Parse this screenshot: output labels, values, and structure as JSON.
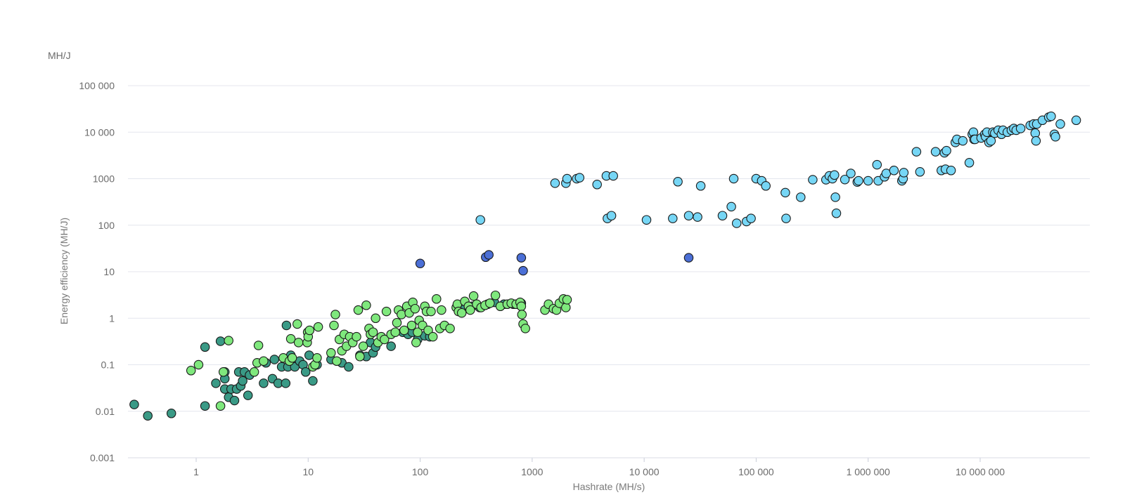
{
  "chart_data": {
    "type": "scatter",
    "title": "",
    "y_unit": "MH/J",
    "xlabel": "Hashrate (MH/s)",
    "ylabel": "Energy efficiency (MH/J)",
    "x_scale": "log",
    "y_scale": "log",
    "xlim": [
      0.16,
      90000000
    ],
    "ylim": [
      0.001,
      100000
    ],
    "grid": "horizontal",
    "legend": "none",
    "x_ticks": [
      {
        "value": 1,
        "label": "1"
      },
      {
        "value": 10,
        "label": "10"
      },
      {
        "value": 100,
        "label": "100"
      },
      {
        "value": 1000,
        "label": "1000"
      },
      {
        "value": 10000,
        "label": "10 000"
      },
      {
        "value": 100000,
        "label": "100 000"
      },
      {
        "value": 1000000,
        "label": "1 000 000"
      },
      {
        "value": 10000000,
        "label": "10 000 000"
      }
    ],
    "y_ticks": [
      {
        "value": 0.001,
        "label": "0.001"
      },
      {
        "value": 0.01,
        "label": "0.01"
      },
      {
        "value": 0.1,
        "label": "0.1"
      },
      {
        "value": 1,
        "label": "1"
      },
      {
        "value": 10,
        "label": "10"
      },
      {
        "value": 100,
        "label": "100"
      },
      {
        "value": 1000,
        "label": "1000"
      },
      {
        "value": 10000,
        "label": "10 000"
      },
      {
        "value": 100000,
        "label": "100 000"
      }
    ],
    "series": [
      {
        "color": "#3a9a86",
        "points": [
          [
            0.28,
            0.014
          ],
          [
            0.37,
            0.008
          ],
          [
            0.6,
            0.009
          ],
          [
            1.2,
            0.013
          ],
          [
            1.2,
            0.24
          ],
          [
            1.5,
            0.04
          ],
          [
            1.65,
            0.32
          ],
          [
            1.8,
            0.07
          ],
          [
            1.8,
            0.05
          ],
          [
            1.8,
            0.03
          ],
          [
            1.95,
            0.02
          ],
          [
            2.05,
            0.03
          ],
          [
            2.2,
            0.017
          ],
          [
            2.3,
            0.03
          ],
          [
            2.4,
            0.07
          ],
          [
            2.5,
            0.035
          ],
          [
            2.6,
            0.045
          ],
          [
            2.7,
            0.07
          ],
          [
            2.9,
            0.022
          ],
          [
            3.0,
            0.06
          ],
          [
            4.0,
            0.04
          ],
          [
            4.2,
            0.11
          ],
          [
            4.8,
            0.05
          ],
          [
            5.0,
            0.13
          ],
          [
            5.4,
            0.04
          ],
          [
            5.8,
            0.09
          ],
          [
            6.3,
            0.04
          ],
          [
            6.4,
            0.7
          ],
          [
            6.6,
            0.09
          ],
          [
            7.0,
            0.16
          ],
          [
            7.5,
            0.11
          ],
          [
            7.6,
            0.09
          ],
          [
            8.4,
            0.12
          ],
          [
            9.0,
            0.1
          ],
          [
            9.5,
            0.07
          ],
          [
            10.2,
            0.16
          ],
          [
            11.0,
            0.045
          ],
          [
            12.0,
            0.1
          ],
          [
            16.0,
            0.13
          ],
          [
            20.0,
            0.11
          ],
          [
            23.0,
            0.09
          ],
          [
            29.0,
            0.16
          ],
          [
            33.0,
            0.15
          ],
          [
            36.0,
            0.3
          ],
          [
            38.0,
            0.18
          ],
          [
            40.0,
            0.24
          ],
          [
            55.0,
            0.25
          ],
          [
            70.0,
            0.5
          ],
          [
            78.0,
            0.45
          ],
          [
            85.0,
            0.5
          ],
          [
            95.0,
            0.35
          ],
          [
            110.0,
            0.42
          ],
          [
            122.0,
            0.4
          ],
          [
            250.0,
            1.6
          ],
          [
            290.0,
            1.8
          ],
          [
            340.0,
            1.7
          ],
          [
            400.0,
            2.0
          ],
          [
            460.0,
            2.2
          ],
          [
            560.0,
            2.0
          ],
          [
            680.0,
            2.0
          ],
          [
            760.0,
            2.0
          ],
          [
            800.0,
            2.1
          ]
        ]
      },
      {
        "color": "#7fe87d",
        "points": [
          [
            0.9,
            0.075
          ],
          [
            1.05,
            0.1
          ],
          [
            1.65,
            0.013
          ],
          [
            1.75,
            0.07
          ],
          [
            1.95,
            0.33
          ],
          [
            3.3,
            0.07
          ],
          [
            3.5,
            0.11
          ],
          [
            3.6,
            0.26
          ],
          [
            4.0,
            0.12
          ],
          [
            6.0,
            0.14
          ],
          [
            6.8,
            0.12
          ],
          [
            7.0,
            0.36
          ],
          [
            7.2,
            0.14
          ],
          [
            8.0,
            0.75
          ],
          [
            8.2,
            0.3
          ],
          [
            9.8,
            0.3
          ],
          [
            9.9,
            0.5
          ],
          [
            10.0,
            0.4
          ],
          [
            10.3,
            0.55
          ],
          [
            11.0,
            0.09
          ],
          [
            11.5,
            0.1
          ],
          [
            12.0,
            0.14
          ],
          [
            12.3,
            0.65
          ],
          [
            16.0,
            0.18
          ],
          [
            17.0,
            0.7
          ],
          [
            17.5,
            1.2
          ],
          [
            18.0,
            0.12
          ],
          [
            19.0,
            0.35
          ],
          [
            20.0,
            0.2
          ],
          [
            21.0,
            0.45
          ],
          [
            22.0,
            0.25
          ],
          [
            23.5,
            0.4
          ],
          [
            25.0,
            0.3
          ],
          [
            27.0,
            0.4
          ],
          [
            28.0,
            1.5
          ],
          [
            29.0,
            0.15
          ],
          [
            31.0,
            0.25
          ],
          [
            33.0,
            1.9
          ],
          [
            35.0,
            0.6
          ],
          [
            36.0,
            0.45
          ],
          [
            38.0,
            0.5
          ],
          [
            40.0,
            1.0
          ],
          [
            42.0,
            0.3
          ],
          [
            45.0,
            0.4
          ],
          [
            48.0,
            0.35
          ],
          [
            50.0,
            1.4
          ],
          [
            55.0,
            0.45
          ],
          [
            60.0,
            0.5
          ],
          [
            62.0,
            0.8
          ],
          [
            64.0,
            1.5
          ],
          [
            68.0,
            1.2
          ],
          [
            72.0,
            0.55
          ],
          [
            76.0,
            1.8
          ],
          [
            80.0,
            1.3
          ],
          [
            84.0,
            0.7
          ],
          [
            86.0,
            2.2
          ],
          [
            90.0,
            1.6
          ],
          [
            92.0,
            0.3
          ],
          [
            95.0,
            0.5
          ],
          [
            98.0,
            0.9
          ],
          [
            105.0,
            0.7
          ],
          [
            110.0,
            1.8
          ],
          [
            114.0,
            1.4
          ],
          [
            118.0,
            0.55
          ],
          [
            125.0,
            1.4
          ],
          [
            130.0,
            0.4
          ],
          [
            140.0,
            2.6
          ],
          [
            150.0,
            0.6
          ],
          [
            155.0,
            1.5
          ],
          [
            165.0,
            0.7
          ],
          [
            185.0,
            0.6
          ],
          [
            210.0,
            1.7
          ],
          [
            215.0,
            2.0
          ],
          [
            220.0,
            1.4
          ],
          [
            235.0,
            1.3
          ],
          [
            250.0,
            2.3
          ],
          [
            270.0,
            1.8
          ],
          [
            280.0,
            1.5
          ],
          [
            300.0,
            3.0
          ],
          [
            320.0,
            2.0
          ],
          [
            350.0,
            1.7
          ],
          [
            380.0,
            1.9
          ],
          [
            420.0,
            2.1
          ],
          [
            470.0,
            3.1
          ],
          [
            520.0,
            1.8
          ],
          [
            600.0,
            2.0
          ],
          [
            650.0,
            2.1
          ],
          [
            720.0,
            2.0
          ],
          [
            780.0,
            2.2
          ],
          [
            800.0,
            1.8
          ],
          [
            810.0,
            1.2
          ],
          [
            830.0,
            0.75
          ],
          [
            870.0,
            0.6
          ],
          [
            1300.0,
            1.5
          ],
          [
            1400.0,
            2.0
          ],
          [
            1550.0,
            1.6
          ],
          [
            1650.0,
            1.5
          ],
          [
            1750.0,
            2.1
          ],
          [
            1900.0,
            2.6
          ],
          [
            2000.0,
            1.7
          ],
          [
            2050.0,
            2.5
          ]
        ]
      },
      {
        "color": "#4b6fd6",
        "points": [
          [
            100.0,
            15.0
          ],
          [
            385.0,
            20.5
          ],
          [
            410.0,
            23.0
          ],
          [
            800.0,
            20.0
          ],
          [
            830.0,
            10.5
          ],
          [
            25000.0,
            20.0
          ]
        ]
      },
      {
        "color": "#76d6f5",
        "points": [
          [
            345.0,
            130.0
          ],
          [
            1600.0,
            800.0
          ],
          [
            2000.0,
            800.0
          ],
          [
            2050.0,
            1000.0
          ],
          [
            2500.0,
            1000.0
          ],
          [
            2650.0,
            1050.0
          ],
          [
            3800.0,
            750.0
          ],
          [
            4600.0,
            1150.0
          ],
          [
            4700.0,
            140.0
          ],
          [
            5100.0,
            160.0
          ],
          [
            5300.0,
            1150.0
          ],
          [
            10500.0,
            130.0
          ],
          [
            18000.0,
            140.0
          ],
          [
            20000.0,
            860.0
          ],
          [
            25000.0,
            160.0
          ],
          [
            30000.0,
            150.0
          ],
          [
            32000.0,
            700.0
          ],
          [
            50000.0,
            160.0
          ],
          [
            60000.0,
            250.0
          ],
          [
            63000.0,
            1000.0
          ],
          [
            67000.0,
            110.0
          ],
          [
            82000.0,
            120.0
          ],
          [
            90000.0,
            140.0
          ],
          [
            100000.0,
            1000.0
          ],
          [
            112000.0,
            900.0
          ],
          [
            122000.0,
            700.0
          ],
          [
            182000.0,
            500.0
          ],
          [
            185000.0,
            140.0
          ],
          [
            250000.0,
            400.0
          ],
          [
            320000.0,
            950.0
          ],
          [
            420000.0,
            950.0
          ],
          [
            450000.0,
            1150.0
          ],
          [
            480000.0,
            1000.0
          ],
          [
            500000.0,
            1200.0
          ],
          [
            510000.0,
            400.0
          ],
          [
            520000.0,
            180.0
          ],
          [
            620000.0,
            960.0
          ],
          [
            700000.0,
            1300.0
          ],
          [
            800000.0,
            850.0
          ],
          [
            820000.0,
            900.0
          ],
          [
            1000000.0,
            900.0
          ],
          [
            1200000.0,
            2000.0
          ],
          [
            1230000.0,
            900.0
          ],
          [
            1400000.0,
            1100.0
          ],
          [
            1450000.0,
            1300.0
          ],
          [
            1700000.0,
            1500.0
          ],
          [
            2000000.0,
            900.0
          ],
          [
            2050000.0,
            1000.0
          ],
          [
            2080000.0,
            1350.0
          ],
          [
            2700000.0,
            3800.0
          ],
          [
            2900000.0,
            1400.0
          ],
          [
            4000000.0,
            3800.0
          ],
          [
            4500000.0,
            1500.0
          ],
          [
            4800000.0,
            3600.0
          ],
          [
            4900000.0,
            1600.0
          ],
          [
            5000000.0,
            4000.0
          ],
          [
            5500000.0,
            1500.0
          ],
          [
            6000000.0,
            6000.0
          ],
          [
            6200000.0,
            7000.0
          ],
          [
            7000000.0,
            6500.0
          ],
          [
            8000000.0,
            2200.0
          ],
          [
            8500000.0,
            9000.0
          ],
          [
            8700000.0,
            10000.0
          ],
          [
            8800000.0,
            7000.0
          ],
          [
            9000000.0,
            7000.0
          ],
          [
            10200000.0,
            7500.0
          ],
          [
            11000000.0,
            9000.0
          ],
          [
            11200000.0,
            8000.0
          ],
          [
            11500000.0,
            10000.0
          ],
          [
            12000000.0,
            6000.0
          ],
          [
            12500000.0,
            6500.0
          ],
          [
            13000000.0,
            10000.0
          ],
          [
            13500000.0,
            9500.0
          ],
          [
            14500000.0,
            11000.0
          ],
          [
            15500000.0,
            9000.0
          ],
          [
            16000000.0,
            11000.0
          ],
          [
            17500000.0,
            10000.0
          ],
          [
            19000000.0,
            11000.0
          ],
          [
            20000000.0,
            12000.0
          ],
          [
            21000000.0,
            11000.0
          ],
          [
            23000000.0,
            12000.0
          ],
          [
            28000000.0,
            14000.0
          ],
          [
            30000000.0,
            15000.0
          ],
          [
            31000000.0,
            9500.0
          ],
          [
            31500000.0,
            6500.0
          ],
          [
            32000000.0,
            15000.0
          ],
          [
            36000000.0,
            18000.0
          ],
          [
            41000000.0,
            21000.0
          ],
          [
            43000000.0,
            22000.0
          ],
          [
            46000000.0,
            9000.0
          ],
          [
            47000000.0,
            8000.0
          ],
          [
            52000000.0,
            15000.0
          ],
          [
            72000000.0,
            18000.0
          ]
        ]
      }
    ]
  }
}
